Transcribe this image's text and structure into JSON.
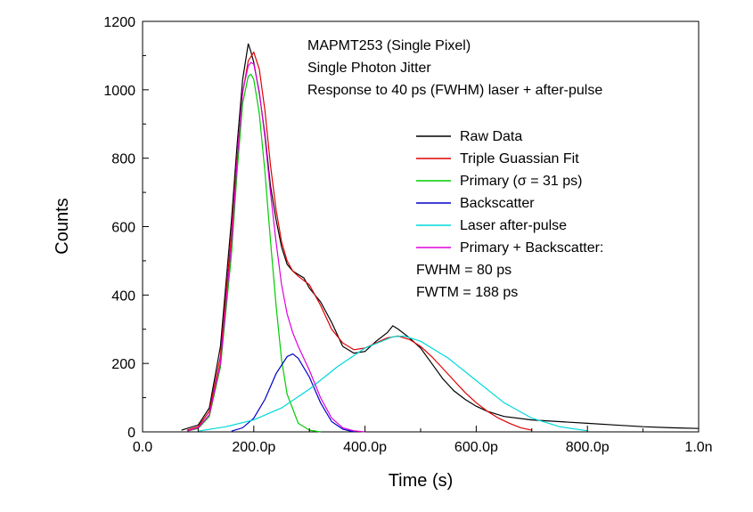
{
  "chart_data": {
    "type": "line",
    "title": "",
    "xlabel": "Time (s)",
    "ylabel": "Counts",
    "xlim": [
      0.0,
      1.0
    ],
    "ylim": [
      0,
      1200
    ],
    "x_unit": "ns",
    "xticks": [
      0.0,
      0.2,
      0.4,
      0.6,
      0.8,
      1.0
    ],
    "xtick_labels": [
      "0.0",
      "200.0p",
      "400.0p",
      "600.0p",
      "800.0p",
      "1.0n"
    ],
    "yticks": [
      0,
      200,
      400,
      600,
      800,
      1000,
      1200
    ],
    "ytick_labels": [
      "0",
      "200",
      "400",
      "600",
      "800",
      "1000",
      "1200"
    ],
    "grid": false,
    "legend_position": "right",
    "annotations": [
      "MAPMT253 (Single Pixel)",
      "Single Photon Jitter",
      "Response to 40 ps (FWHM) laser + after-pulse"
    ],
    "extra_legend_text": [
      "FWHM = 80 ps",
      "FWTM = 188 ps"
    ],
    "series": [
      {
        "name": "Raw Data",
        "color": "#000000",
        "x": [
          0.07,
          0.1,
          0.12,
          0.14,
          0.16,
          0.17,
          0.18,
          0.19,
          0.195,
          0.2,
          0.21,
          0.22,
          0.23,
          0.24,
          0.25,
          0.26,
          0.27,
          0.28,
          0.29,
          0.3,
          0.32,
          0.34,
          0.36,
          0.38,
          0.4,
          0.42,
          0.44,
          0.45,
          0.46,
          0.48,
          0.5,
          0.52,
          0.54,
          0.56,
          0.58,
          0.6,
          0.62,
          0.65,
          0.7,
          0.75,
          0.8,
          0.85,
          0.9,
          0.95,
          1.0
        ],
        "y": [
          5,
          20,
          70,
          250,
          620,
          840,
          1030,
          1135,
          1110,
          1080,
          990,
          870,
          720,
          620,
          540,
          490,
          470,
          460,
          450,
          420,
          380,
          320,
          250,
          230,
          235,
          265,
          290,
          310,
          300,
          275,
          245,
          200,
          155,
          120,
          95,
          75,
          60,
          45,
          35,
          30,
          25,
          20,
          15,
          12,
          10
        ]
      },
      {
        "name": "Triple Guassian Fit",
        "color": "#e00000",
        "x": [
          0.08,
          0.1,
          0.12,
          0.14,
          0.16,
          0.17,
          0.18,
          0.19,
          0.2,
          0.21,
          0.22,
          0.23,
          0.24,
          0.25,
          0.26,
          0.27,
          0.28,
          0.3,
          0.32,
          0.34,
          0.36,
          0.38,
          0.4,
          0.42,
          0.44,
          0.46,
          0.48,
          0.5,
          0.52,
          0.54,
          0.56,
          0.58,
          0.6,
          0.62,
          0.64,
          0.66,
          0.68,
          0.7
        ],
        "y": [
          5,
          15,
          60,
          220,
          580,
          800,
          990,
          1085,
          1110,
          1060,
          940,
          780,
          650,
          555,
          500,
          470,
          455,
          430,
          370,
          300,
          260,
          240,
          245,
          260,
          275,
          280,
          270,
          250,
          220,
          185,
          150,
          115,
          85,
          60,
          40,
          25,
          12,
          5
        ]
      },
      {
        "name": "Primary (σ = 31 ps)",
        "color": "#00cc00",
        "x": [
          0.08,
          0.1,
          0.12,
          0.14,
          0.16,
          0.17,
          0.18,
          0.19,
          0.195,
          0.2,
          0.21,
          0.22,
          0.23,
          0.24,
          0.25,
          0.26,
          0.28,
          0.3,
          0.32
        ],
        "y": [
          2,
          10,
          45,
          190,
          520,
          760,
          960,
          1040,
          1045,
          1030,
          930,
          760,
          560,
          370,
          210,
          110,
          25,
          5,
          0
        ]
      },
      {
        "name": "Backscatter",
        "color": "#0000cc",
        "x": [
          0.16,
          0.18,
          0.2,
          0.22,
          0.24,
          0.26,
          0.27,
          0.28,
          0.3,
          0.32,
          0.34,
          0.36,
          0.38
        ],
        "y": [
          2,
          12,
          40,
          95,
          170,
          220,
          228,
          215,
          160,
          85,
          30,
          8,
          0
        ]
      },
      {
        "name": "Laser after-pulse",
        "color": "#00d8d8",
        "x": [
          0.1,
          0.15,
          0.2,
          0.25,
          0.3,
          0.35,
          0.4,
          0.45,
          0.47,
          0.5,
          0.55,
          0.6,
          0.65,
          0.7,
          0.75,
          0.8
        ],
        "y": [
          2,
          15,
          35,
          70,
          125,
          190,
          245,
          278,
          280,
          265,
          215,
          150,
          85,
          40,
          15,
          3
        ]
      },
      {
        "name": "Primary + Backscatter:",
        "color": "#dd00dd",
        "x": [
          0.08,
          0.1,
          0.12,
          0.14,
          0.16,
          0.17,
          0.18,
          0.19,
          0.195,
          0.2,
          0.21,
          0.22,
          0.23,
          0.24,
          0.25,
          0.26,
          0.27,
          0.28,
          0.3,
          0.32,
          0.34,
          0.36,
          0.38,
          0.4
        ],
        "y": [
          2,
          12,
          50,
          200,
          550,
          790,
          995,
          1070,
          1080,
          1075,
          995,
          860,
          700,
          555,
          430,
          345,
          290,
          250,
          180,
          100,
          40,
          12,
          3,
          0
        ]
      }
    ]
  }
}
